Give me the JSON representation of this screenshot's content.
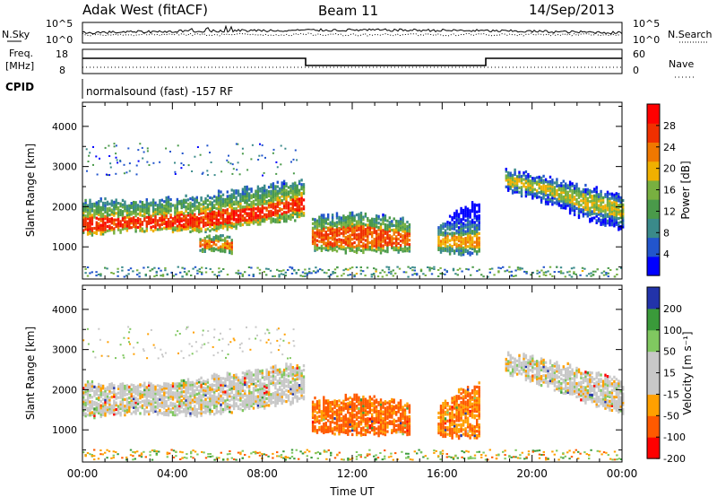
{
  "header": {
    "station": "Adak West (fitACF)",
    "beam": "Beam 11",
    "date": "14/Sep/2013"
  },
  "left_labels": {
    "nsky": "N.Sky",
    "freq": "Freq.",
    "mhz": "[MHz]",
    "cpid": "CPID"
  },
  "right_labels": {
    "nsearch": "N.Search",
    "nave": "Nave"
  },
  "strip_ticks": {
    "noise_top": "10^5",
    "noise_bottom": "10^0",
    "freq_top": "18",
    "freq_bottom": "8",
    "nave_top": "60",
    "nave_bottom": "0"
  },
  "cpid_text": "normalsound (fast) -157 RF",
  "colors": {
    "power_scale": [
      "#0000ff",
      "#2255cc",
      "#3a8a8a",
      "#4a9a4a",
      "#78b040",
      "#f0b000",
      "#f07800",
      "#f03000",
      "#ff0000"
    ],
    "velocity_scale": [
      "#ff0000",
      "#ff5a00",
      "#ffa000",
      "#c8c8c8",
      "#c8c8c8",
      "#80c860",
      "#3a9a3a",
      "#2233aa"
    ]
  },
  "chart_data": [
    {
      "type": "heatmap",
      "panel": "power",
      "xlabel": "",
      "ylabel": "Slant Range [km]",
      "ylim": [
        200,
        4600
      ],
      "yticks": [
        1000,
        2000,
        3000,
        4000
      ],
      "colorbar": {
        "label": "Power [dB]",
        "ticks": [
          4,
          8,
          12,
          16,
          20,
          24,
          28
        ],
        "range": [
          0,
          32
        ]
      },
      "regions": [
        {
          "t": [
            0.0,
            9.8
          ],
          "r_lo": [
            1300,
            1400,
            1350,
            1500,
            1700
          ],
          "r_hi": [
            2100,
            2100,
            2200,
            2400,
            2600
          ],
          "core_lo": [
            1350,
            1450,
            1450,
            1600,
            1900
          ],
          "core_hi": [
            1700,
            1700,
            1800,
            1950,
            2200
          ],
          "peak_db": 30
        },
        {
          "t": [
            10.2,
            14.5
          ],
          "r_lo": [
            900,
            850,
            900
          ],
          "r_hi": [
            1700,
            1800,
            1600
          ],
          "core_lo": [
            1000,
            950,
            1000
          ],
          "core_hi": [
            1400,
            1500,
            1300
          ],
          "peak_db": 28
        },
        {
          "t": [
            15.8,
            17.6
          ],
          "r_lo": [
            850,
            800,
            800
          ],
          "r_hi": [
            1500,
            1900,
            2100
          ],
          "core_lo": [
            1000,
            950,
            950
          ],
          "core_hi": [
            1250,
            1250,
            1300
          ],
          "peak_db": 24
        },
        {
          "t": [
            18.8,
            24.0
          ],
          "r_lo": [
            2400,
            2100,
            1700,
            1400
          ],
          "r_hi": [
            2850,
            2700,
            2450,
            2200
          ],
          "core_lo": [
            2500,
            2300,
            1900,
            1700
          ],
          "core_hi": [
            2750,
            2550,
            2300,
            2050
          ],
          "peak_db": 20
        },
        {
          "t": [
            5.2,
            6.6
          ],
          "r_lo": [
            900,
            850
          ],
          "r_hi": [
            1300,
            1200
          ],
          "core_lo": [
            950,
            900
          ],
          "core_hi": [
            1150,
            1100
          ],
          "peak_db": 26
        }
      ]
    },
    {
      "type": "heatmap",
      "panel": "velocity",
      "xlabel": "Time UT",
      "ylabel": "Slant Range [km]",
      "ylim": [
        200,
        4600
      ],
      "yticks": [
        1000,
        2000,
        3000,
        4000
      ],
      "xticks": [
        "00:00",
        "04:00",
        "08:00",
        "12:00",
        "16:00",
        "20:00",
        "00:00"
      ],
      "xlim": [
        0,
        24
      ],
      "colorbar": {
        "label": "Velocity [m s⁻¹]",
        "ticks": [
          200,
          100,
          50,
          15,
          -15,
          -50,
          -100,
          -200
        ],
        "range": [
          -250,
          250
        ]
      },
      "regions": [
        {
          "t": [
            0.0,
            9.8
          ],
          "r_lo": [
            1300,
            1400,
            1350,
            1500,
            1700
          ],
          "r_hi": [
            2100,
            2100,
            2200,
            2400,
            2600
          ],
          "vel": 0
        },
        {
          "t": [
            10.2,
            14.5
          ],
          "r_lo": [
            900,
            850,
            900
          ],
          "r_hi": [
            1700,
            1800,
            1600
          ],
          "vel": -60
        },
        {
          "t": [
            15.8,
            17.6
          ],
          "r_lo": [
            850,
            800,
            800
          ],
          "r_hi": [
            1500,
            1900,
            2100
          ],
          "vel": -50
        },
        {
          "t": [
            18.8,
            24.0
          ],
          "r_lo": [
            2400,
            2100,
            1700,
            1400
          ],
          "r_hi": [
            2850,
            2700,
            2450,
            2200
          ],
          "vel": 0
        }
      ]
    }
  ]
}
